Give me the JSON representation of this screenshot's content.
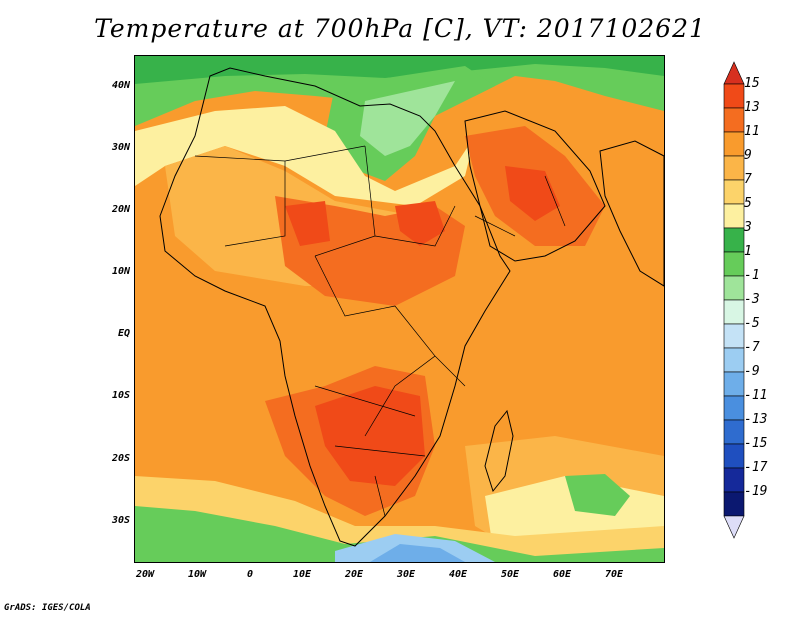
{
  "title": "Temperature at 700hPa [C], VT: 2017102621",
  "credit": "GrADS: IGES/COLA",
  "axes": {
    "lat_labels": [
      "40N",
      "30N",
      "20N",
      "10N",
      "EQ",
      "10S",
      "20S",
      "30S"
    ],
    "lon_labels": [
      "20W",
      "10W",
      "0",
      "10E",
      "20E",
      "30E",
      "40E",
      "50E",
      "60E",
      "70E"
    ]
  },
  "colorbar": {
    "labels": [
      "15",
      "13",
      "11",
      "9",
      "7",
      "5",
      "3",
      "1",
      "-1",
      "-3",
      "-5",
      "-7",
      "-9",
      "-11",
      "-13",
      "-15",
      "-17",
      "-19"
    ],
    "colors": [
      "#d7301f",
      "#f04a18",
      "#f46d20",
      "#f99b2d",
      "#fbb548",
      "#fcd36a",
      "#fdf0a0",
      "#37b24a",
      "#66cc5a",
      "#9fe49a",
      "#d8f6e4",
      "#c4e2f6",
      "#9ccdf2",
      "#6eaee9",
      "#4a8fdf",
      "#2f6ccf",
      "#1f4fbf",
      "#15299a",
      "#0b1870",
      "#ddddf8"
    ]
  },
  "map_colors": {
    "ocean": "#f99b2d",
    "hot": "#f46d20",
    "hotter": "#f04a18",
    "warm": "#fbb548",
    "mild": "#fcd36a",
    "pale": "#fdf0a0",
    "green": "#66cc5a",
    "green_dark": "#37b24a",
    "green_light": "#9fe49a",
    "blue_light": "#9ccdf2",
    "blue": "#6eaee9",
    "blue_dark": "#4a8fdf"
  }
}
